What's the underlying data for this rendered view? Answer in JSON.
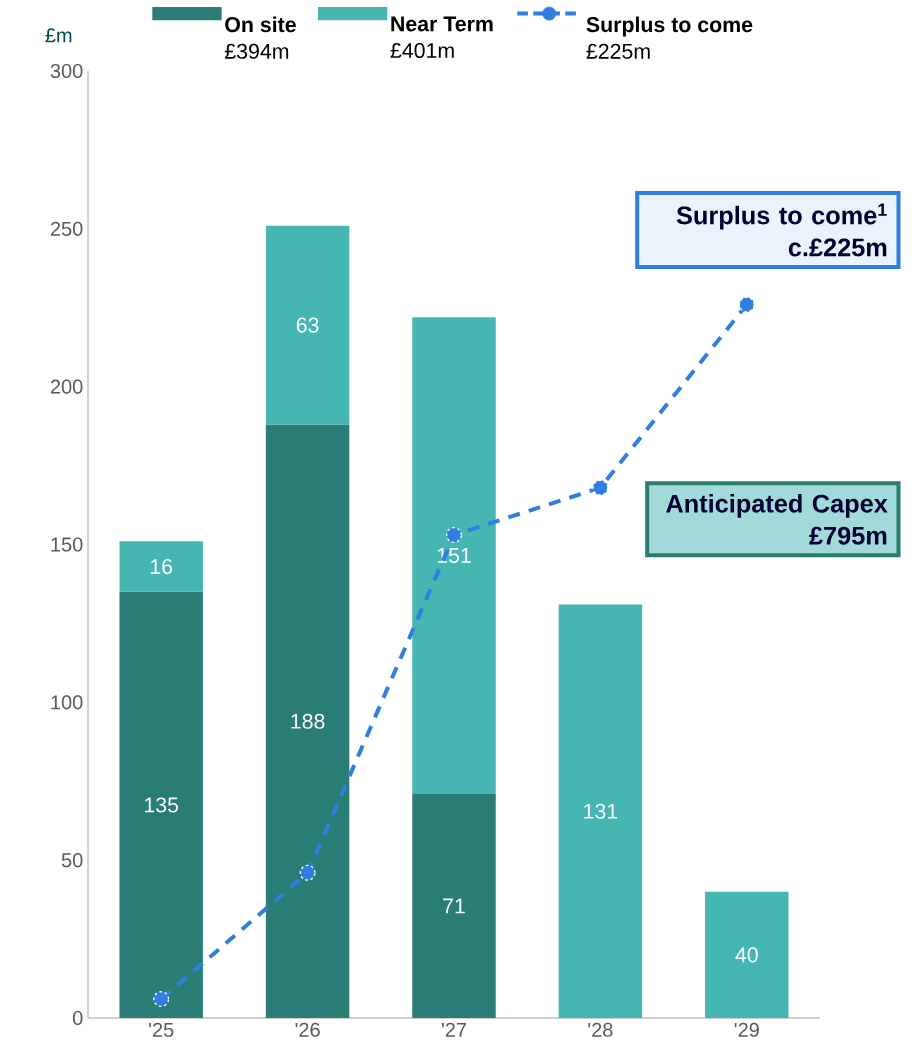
{
  "chart_data": {
    "type": "bar",
    "stacked": true,
    "ylabel": "£m",
    "categories": [
      "'25",
      "'26",
      "'27",
      "'28",
      "'29"
    ],
    "series": [
      {
        "name": "On site",
        "color": "#2a7d74",
        "values": [
          135,
          188,
          71,
          null,
          null
        ],
        "value_labels": [
          "135",
          "188",
          "71",
          null,
          null
        ]
      },
      {
        "name": "Near Term",
        "color": "#45b6b2",
        "values": [
          16,
          63,
          151,
          131,
          40
        ],
        "value_labels": [
          "16",
          "63",
          "151",
          "131",
          "40"
        ]
      },
      {
        "name": "Surplus to come",
        "type": "line",
        "color": "#2f7fe0",
        "marker": "circle",
        "line_style": "dashed",
        "values": [
          6,
          46,
          153,
          168,
          226
        ]
      }
    ],
    "ylim": [
      0,
      300
    ],
    "yticks": [
      0,
      50,
      100,
      150,
      200,
      250,
      300
    ],
    "grid": false,
    "legend": "top",
    "annotations": [
      "£394m",
      "£401m",
      "£225m",
      "Surplus to come$^{1}$",
      "c.£225m",
      "Anticipated Capex",
      "£795m"
    ]
  }
}
